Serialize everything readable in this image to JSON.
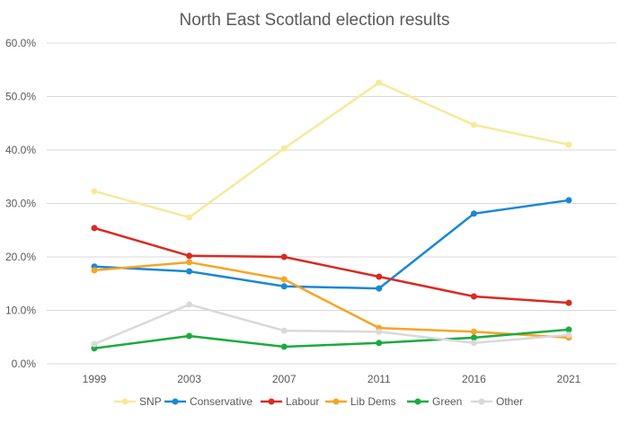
{
  "chart_data": {
    "type": "line",
    "title": "North East Scotland election results",
    "categories": [
      "1999",
      "2003",
      "2007",
      "2011",
      "2016",
      "2021"
    ],
    "ylim": [
      0,
      60
    ],
    "yticks": [
      "0.0%",
      "10.0%",
      "20.0%",
      "30.0%",
      "40.0%",
      "50.0%",
      "60.0%"
    ],
    "grid": true,
    "legend": "bottom",
    "series": [
      {
        "name": "SNP",
        "color": "#f7e99a",
        "values": [
          32.3,
          27.4,
          40.3,
          52.6,
          44.7,
          41.0
        ]
      },
      {
        "name": "Conservative",
        "color": "#1a87d6",
        "values": [
          18.2,
          17.3,
          14.5,
          14.1,
          28.1,
          30.6
        ]
      },
      {
        "name": "Labour",
        "color": "#d92a22",
        "values": [
          25.4,
          20.2,
          20.0,
          16.3,
          12.6,
          11.4
        ]
      },
      {
        "name": "Lib Dems",
        "color": "#f7a425",
        "values": [
          17.5,
          19.0,
          15.8,
          6.7,
          6.0,
          4.9
        ]
      },
      {
        "name": "Green",
        "color": "#1aab40",
        "values": [
          2.9,
          5.2,
          3.2,
          3.9,
          4.9,
          6.4
        ]
      },
      {
        "name": "Other",
        "color": "#d9d9d9",
        "values": [
          3.7,
          11.1,
          6.2,
          6.0,
          3.9,
          5.4
        ]
      }
    ]
  }
}
